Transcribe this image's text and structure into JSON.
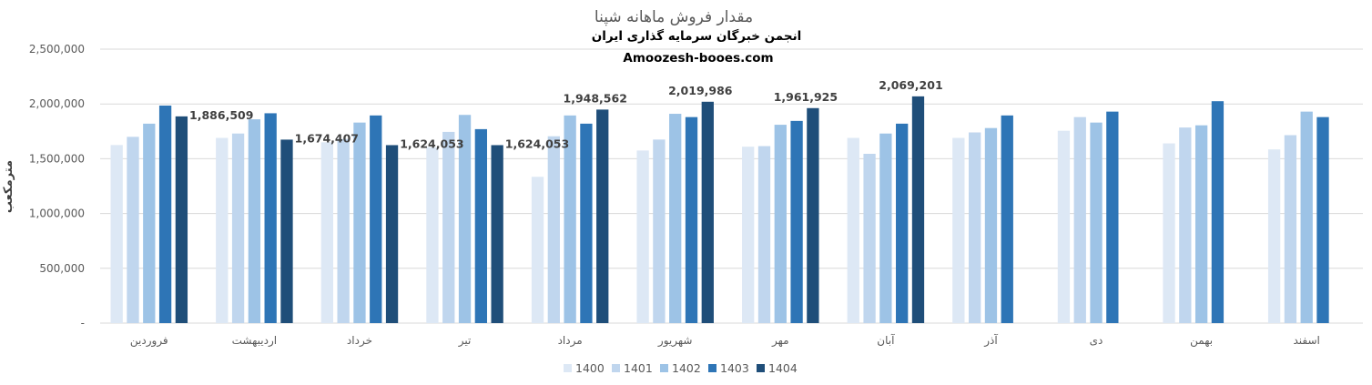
{
  "chart_data": {
    "type": "bar",
    "title": "مقدار فروش ماهانه شپنا",
    "subtitle": "انجمن خبرگان سرمایه گذاری ایران",
    "website": "Amoozesh-booes.com",
    "ylabel": "مترمکعب",
    "ylim": [
      0,
      2500000
    ],
    "yticks": [
      "-",
      "500,000",
      "1,000,000",
      "1,500,000",
      "2,000,000",
      "2,500,000"
    ],
    "grid": true,
    "legend_position": "bottom",
    "categories": [
      "فروردین",
      "اردیبهشت",
      "خرداد",
      "تیر",
      "مرداد",
      "شهریور",
      "مهر",
      "آبان",
      "آذر",
      "دی",
      "بهمن",
      "اسفند"
    ],
    "series": [
      {
        "name": "1400",
        "color": "#dde8f5",
        "values": [
          1625000,
          1690000,
          1650000,
          1605000,
          1335000,
          1575000,
          1610000,
          1690000,
          1690000,
          1755000,
          1640000,
          1585000
        ]
      },
      {
        "name": "1401",
        "color": "#c0d6ee",
        "values": [
          1700000,
          1730000,
          1680000,
          1745000,
          1705000,
          1675000,
          1615000,
          1545000,
          1740000,
          1880000,
          1785000,
          1715000
        ]
      },
      {
        "name": "1402",
        "color": "#9dc3e6",
        "values": [
          1820000,
          1860000,
          1830000,
          1900000,
          1895000,
          1910000,
          1810000,
          1730000,
          1780000,
          1830000,
          1805000,
          1930000
        ]
      },
      {
        "name": "1403",
        "color": "#2e75b6",
        "values": [
          1985000,
          1915000,
          1895000,
          1770000,
          1820000,
          1880000,
          1845000,
          1820000,
          1895000,
          1930000,
          2025000,
          1880000
        ]
      },
      {
        "name": "1404",
        "color": "#1f4e79",
        "values": [
          1886509,
          1674407,
          1624053,
          1624053,
          1948562,
          2019986,
          1961925,
          2069201,
          null,
          null,
          null,
          null
        ]
      }
    ],
    "data_labels": [
      "1,886,509",
      "1,674,407",
      "1,624,053",
      "1,624,053",
      "1,948,562",
      "2,019,986",
      "1,961,925",
      "2,069,201"
    ]
  }
}
